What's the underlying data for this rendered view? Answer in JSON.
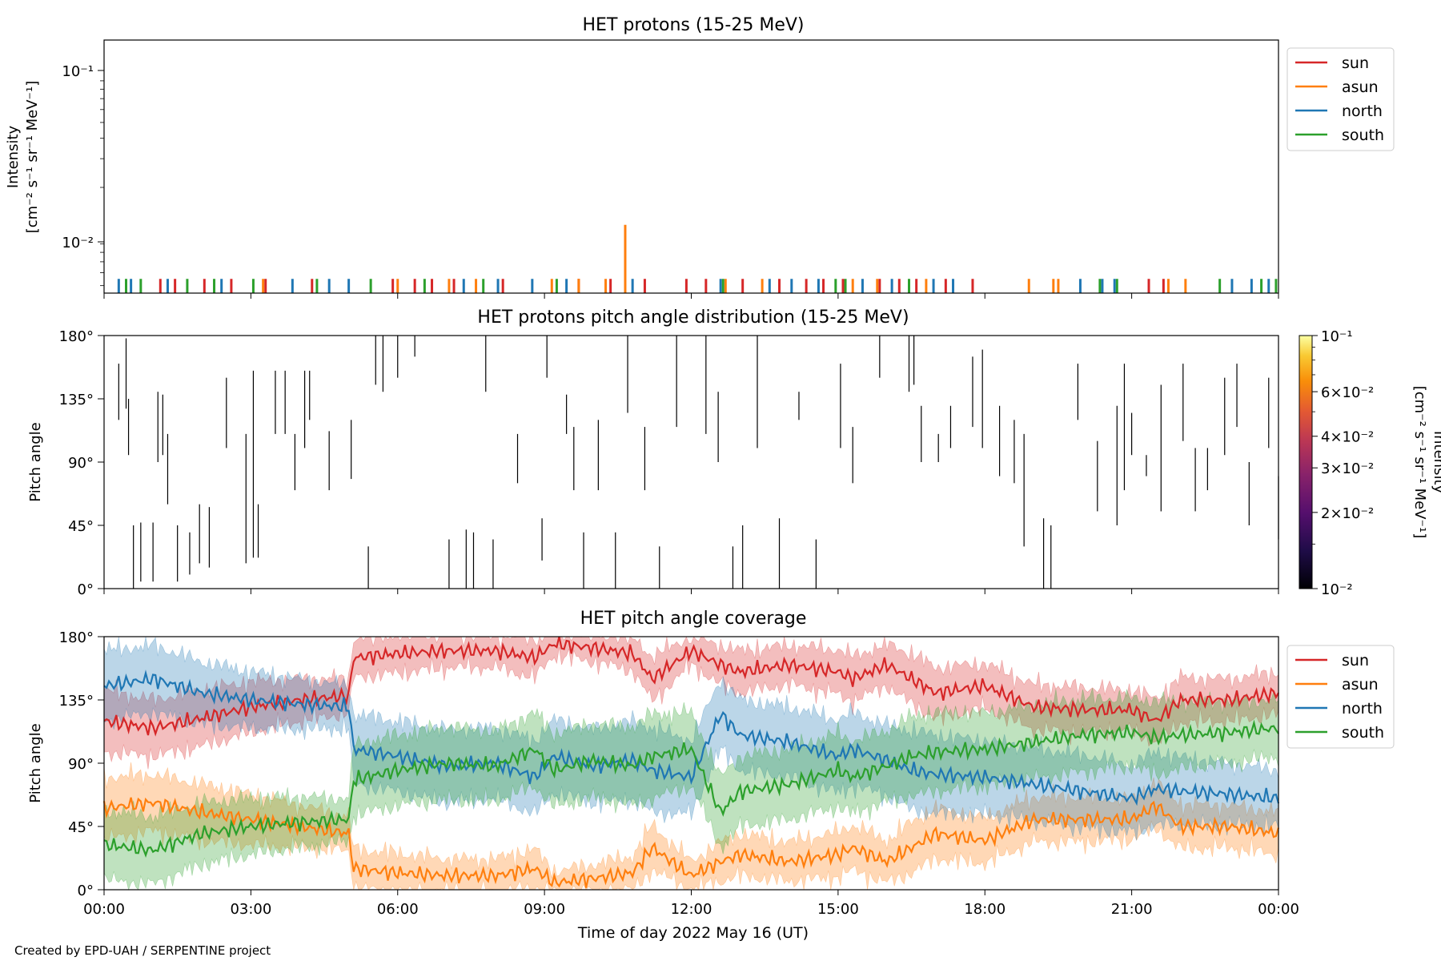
{
  "footer": "Created by EPD-UAH / SERPENTINE project",
  "xlabel": "Time of day 2022 May 16 (UT)",
  "x_ticks": [
    "00:00",
    "03:00",
    "06:00",
    "09:00",
    "12:00",
    "15:00",
    "18:00",
    "21:00",
    "00:00"
  ],
  "colors": {
    "sun": "#d62728",
    "asun": "#ff7f0e",
    "north": "#1f77b4",
    "south": "#2ca02c"
  },
  "legend": [
    "sun",
    "asun",
    "north",
    "south"
  ],
  "chart_data": [
    {
      "type": "bar",
      "title": "HET protons (15-25 MeV)",
      "ylabel_line1": "Intensity",
      "ylabel_line2": "[cm⁻² s⁻¹ sr⁻¹ MeV⁻¹]",
      "yscale": "log",
      "ylim": [
        0.0045,
        0.16
      ],
      "y_ticks": [
        "10⁻¹",
        "10⁻²"
      ],
      "xlim_hours": [
        0,
        24
      ],
      "baseline": 0.0045,
      "series": [
        {
          "name": "sun",
          "x": [
            1.15,
            1.45,
            2.05,
            2.6,
            3.3,
            4.25,
            5.9,
            6.35,
            6.7,
            7.15,
            8.15,
            9.7,
            10.35,
            11.05,
            11.9,
            12.3,
            13.05,
            13.8,
            14.35,
            14.7,
            15.1,
            15.85,
            16.25,
            16.6,
            17.2,
            17.75,
            21.35,
            21.65
          ],
          "values": [
            0.0055,
            0.0055,
            0.0055,
            0.0055,
            0.0055,
            0.0055,
            0.0055,
            0.0055,
            0.0055,
            0.0055,
            0.0055,
            0.0055,
            0.0055,
            0.0055,
            0.0055,
            0.0055,
            0.0055,
            0.0055,
            0.0055,
            0.0055,
            0.0055,
            0.0055,
            0.0055,
            0.0055,
            0.0055,
            0.0055,
            0.0055,
            0.0055
          ]
        },
        {
          "name": "asun",
          "x": [
            3.25,
            6.0,
            7.05,
            7.6,
            9.15,
            9.7,
            10.25,
            10.65,
            12.7,
            13.45,
            15.3,
            15.8,
            16.8,
            18.9,
            19.4,
            19.5,
            21.75,
            22.1
          ],
          "values": [
            0.0055,
            0.0055,
            0.0055,
            0.0055,
            0.0055,
            0.0055,
            0.0055,
            0.0118,
            0.0055,
            0.0055,
            0.0055,
            0.0055,
            0.0055,
            0.0055,
            0.0055,
            0.0055,
            0.0055,
            0.0055
          ]
        },
        {
          "name": "north",
          "x": [
            0.3,
            0.55,
            1.3,
            2.4,
            3.85,
            4.6,
            5.0,
            7.35,
            8.05,
            8.75,
            9.45,
            10.8,
            12.6,
            13.6,
            14.05,
            14.6,
            15.5,
            16.1,
            16.95,
            17.35,
            19.95,
            20.4,
            20.65,
            23.05,
            23.45,
            23.8
          ],
          "values": [
            0.0055,
            0.0055,
            0.0055,
            0.0055,
            0.0055,
            0.0055,
            0.0055,
            0.0055,
            0.0055,
            0.0055,
            0.0055,
            0.0055,
            0.0055,
            0.0055,
            0.0055,
            0.0055,
            0.0055,
            0.0055,
            0.0055,
            0.0055,
            0.0055,
            0.0055,
            0.0055,
            0.0055,
            0.0055,
            0.0055
          ]
        },
        {
          "name": "south",
          "x": [
            0.45,
            0.75,
            1.7,
            2.25,
            3.05,
            4.35,
            5.45,
            6.55,
            7.75,
            9.25,
            12.65,
            14.95,
            15.15,
            16.45,
            20.35,
            20.7,
            22.8,
            23.65,
            23.95
          ],
          "values": [
            0.0055,
            0.0055,
            0.0055,
            0.0055,
            0.0055,
            0.0055,
            0.0055,
            0.0055,
            0.0055,
            0.0055,
            0.0055,
            0.0055,
            0.0055,
            0.0055,
            0.0055,
            0.0055,
            0.0055,
            0.0055,
            0.0055
          ]
        }
      ]
    },
    {
      "type": "heatmap",
      "title": "HET protons pitch angle distribution (15-25 MeV)",
      "ylabel": "Pitch angle",
      "y_ticks": [
        "180°",
        "135°",
        "90°",
        "45°",
        "0°"
      ],
      "ylim": [
        0,
        180
      ],
      "colorbar_label_line1": "Intensity",
      "colorbar_label_line2": "[cm⁻² s⁻¹ sr⁻¹ MeV⁻¹]",
      "colorbar_ticks": [
        "10⁻¹",
        "6×10⁻²",
        "4×10⁻²",
        "3×10⁻²",
        "2×10⁻²",
        "10⁻²"
      ],
      "colorbar_tick_values": [
        0.1,
        0.06,
        0.04,
        0.03,
        0.02,
        0.01
      ],
      "colorbar_range": [
        0.01,
        0.1
      ],
      "segments": [
        [
          0.3,
          120,
          160
        ],
        [
          0.45,
          128,
          178
        ],
        [
          0.5,
          95,
          135
        ],
        [
          0.6,
          0,
          45
        ],
        [
          0.75,
          5,
          47
        ],
        [
          1.0,
          5,
          47
        ],
        [
          1.1,
          90,
          140
        ],
        [
          1.2,
          95,
          138
        ],
        [
          1.3,
          60,
          110
        ],
        [
          1.5,
          5,
          45
        ],
        [
          1.75,
          10,
          40
        ],
        [
          1.95,
          18,
          60
        ],
        [
          2.15,
          15,
          58
        ],
        [
          2.5,
          100,
          150
        ],
        [
          2.9,
          18,
          110
        ],
        [
          3.05,
          22,
          155
        ],
        [
          3.15,
          22,
          60
        ],
        [
          3.5,
          110,
          155
        ],
        [
          3.7,
          110,
          155
        ],
        [
          3.9,
          70,
          110
        ],
        [
          4.1,
          100,
          155
        ],
        [
          4.2,
          120,
          155
        ],
        [
          4.6,
          70,
          112
        ],
        [
          5.05,
          78,
          120
        ],
        [
          5.4,
          0,
          30
        ],
        [
          5.55,
          145,
          180
        ],
        [
          5.7,
          140,
          180
        ],
        [
          6.0,
          150,
          180
        ],
        [
          6.35,
          165,
          180
        ],
        [
          7.05,
          0,
          35
        ],
        [
          7.4,
          0,
          42
        ],
        [
          7.55,
          0,
          40
        ],
        [
          7.8,
          140,
          180
        ],
        [
          7.95,
          0,
          35
        ],
        [
          8.45,
          75,
          110
        ],
        [
          8.95,
          20,
          50
        ],
        [
          9.05,
          150,
          180
        ],
        [
          9.45,
          110,
          138
        ],
        [
          9.6,
          70,
          115
        ],
        [
          9.8,
          0,
          40
        ],
        [
          10.1,
          70,
          120
        ],
        [
          10.45,
          0,
          40
        ],
        [
          10.7,
          125,
          180
        ],
        [
          11.05,
          70,
          115
        ],
        [
          11.35,
          0,
          30
        ],
        [
          11.7,
          115,
          180
        ],
        [
          12.3,
          110,
          180
        ],
        [
          12.55,
          90,
          140
        ],
        [
          12.85,
          0,
          30
        ],
        [
          13.05,
          0,
          45
        ],
        [
          13.35,
          100,
          180
        ],
        [
          13.8,
          0,
          50
        ],
        [
          14.2,
          120,
          140
        ],
        [
          14.55,
          0,
          35
        ],
        [
          15.05,
          100,
          160
        ],
        [
          15.3,
          75,
          115
        ],
        [
          15.85,
          150,
          180
        ],
        [
          16.45,
          140,
          180
        ],
        [
          16.55,
          145,
          180
        ],
        [
          16.7,
          90,
          130
        ],
        [
          17.05,
          90,
          110
        ],
        [
          17.3,
          100,
          130
        ],
        [
          17.75,
          115,
          165
        ],
        [
          17.95,
          100,
          170
        ],
        [
          18.3,
          80,
          130
        ],
        [
          18.6,
          75,
          120
        ],
        [
          18.8,
          30,
          110
        ],
        [
          19.2,
          0,
          50
        ],
        [
          19.35,
          0,
          45
        ],
        [
          19.9,
          120,
          160
        ],
        [
          20.3,
          55,
          105
        ],
        [
          20.7,
          45,
          130
        ],
        [
          20.85,
          70,
          160
        ],
        [
          21.0,
          95,
          125
        ],
        [
          21.3,
          80,
          95
        ],
        [
          21.6,
          55,
          145
        ],
        [
          22.05,
          105,
          160
        ],
        [
          22.3,
          55,
          100
        ],
        [
          22.55,
          70,
          100
        ],
        [
          22.9,
          95,
          150
        ],
        [
          23.15,
          115,
          160
        ],
        [
          23.4,
          45,
          90
        ],
        [
          23.8,
          100,
          150
        ],
        [
          24.0,
          35,
          80
        ]
      ]
    },
    {
      "type": "area",
      "title": "HET pitch angle coverage",
      "ylabel": "Pitch angle",
      "y_ticks": [
        "180°",
        "135°",
        "90°",
        "45°",
        "0°"
      ],
      "ylim": [
        0,
        180
      ],
      "x_hours": [
        0,
        1,
        2,
        3,
        4,
        5,
        5.1,
        6,
        7,
        8,
        8.8,
        9.2,
        10,
        10.8,
        11.2,
        12,
        12.6,
        13,
        14,
        15,
        15.3,
        16,
        16.5,
        17,
        18,
        19,
        20,
        21,
        21.5,
        22,
        23,
        24
      ],
      "series": [
        {
          "name": "sun",
          "mean": [
            120,
            115,
            122,
            130,
            135,
            138,
            165,
            168,
            170,
            170,
            165,
            175,
            172,
            168,
            150,
            170,
            160,
            155,
            160,
            155,
            150,
            160,
            150,
            140,
            145,
            130,
            128,
            128,
            120,
            135,
            135,
            140
          ],
          "spread": [
            22,
            20,
            20,
            18,
            15,
            12,
            14,
            14,
            12,
            12,
            14,
            8,
            10,
            12,
            16,
            10,
            14,
            15,
            14,
            16,
            16,
            15,
            18,
            18,
            16,
            16,
            16,
            14,
            16,
            16,
            15,
            15
          ]
        },
        {
          "name": "asun",
          "mean": [
            58,
            62,
            55,
            50,
            45,
            40,
            15,
            12,
            10,
            10,
            15,
            5,
            8,
            12,
            30,
            10,
            20,
            25,
            20,
            25,
            30,
            20,
            30,
            40,
            35,
            50,
            50,
            50,
            60,
            45,
            45,
            40
          ],
          "spread": [
            22,
            20,
            20,
            18,
            15,
            12,
            14,
            14,
            12,
            12,
            14,
            8,
            10,
            12,
            16,
            10,
            14,
            15,
            14,
            16,
            16,
            15,
            18,
            18,
            16,
            16,
            16,
            14,
            16,
            16,
            15,
            15
          ]
        },
        {
          "name": "north",
          "mean": [
            145,
            150,
            140,
            135,
            132,
            130,
            100,
            95,
            88,
            90,
            80,
            95,
            88,
            92,
            85,
            80,
            125,
            110,
            105,
            95,
            100,
            92,
            85,
            82,
            80,
            75,
            70,
            65,
            72,
            70,
            68,
            65
          ],
          "spread": [
            25,
            24,
            22,
            20,
            18,
            15,
            25,
            25,
            26,
            25,
            26,
            26,
            26,
            28,
            30,
            26,
            25,
            25,
            25,
            26,
            26,
            25,
            28,
            28,
            26,
            26,
            26,
            24,
            26,
            24,
            22,
            20
          ]
        },
        {
          "name": "south",
          "mean": [
            32,
            28,
            40,
            45,
            48,
            50,
            78,
            85,
            90,
            88,
            100,
            85,
            92,
            88,
            95,
            100,
            55,
            70,
            75,
            85,
            80,
            88,
            95,
            98,
            100,
            105,
            110,
            112,
            108,
            110,
            112,
            115
          ],
          "spread": [
            25,
            24,
            22,
            20,
            18,
            15,
            25,
            25,
            26,
            25,
            26,
            26,
            26,
            28,
            30,
            26,
            25,
            25,
            25,
            26,
            26,
            25,
            28,
            28,
            26,
            26,
            26,
            24,
            26,
            24,
            22,
            20
          ]
        }
      ]
    }
  ]
}
